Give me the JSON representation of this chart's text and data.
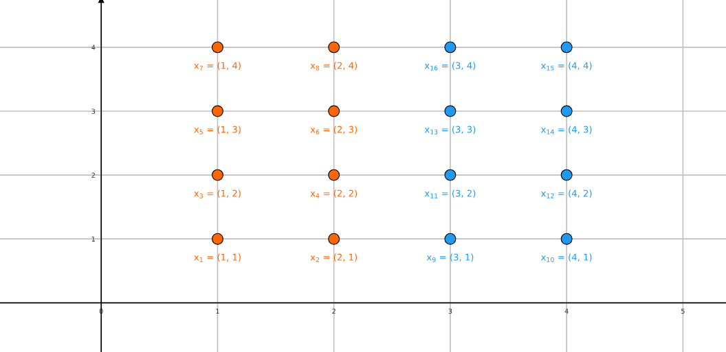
{
  "chart_data": {
    "type": "scatter",
    "xlim": [
      -0.87,
      5.37
    ],
    "ylim": [
      -0.77,
      4.74
    ],
    "xticks": [
      0,
      1,
      2,
      3,
      4,
      5
    ],
    "yticks": [
      1,
      2,
      3,
      4
    ],
    "grid": true,
    "marker": "circle",
    "series": [
      {
        "color": "#ff6600",
        "x": [
          1,
          2,
          1,
          2,
          1,
          2,
          1,
          2
        ],
        "values": [
          1,
          1,
          2,
          2,
          3,
          3,
          4,
          4
        ],
        "value_labels": [
          "x$_{1}$ = (1, 1)",
          "x$_{2}$ = (2, 1)",
          "x$_{3}$ = (1, 2)",
          "x$_{4}$ = (2, 2)",
          "x$_{5}$ = (1, 3)",
          "x$_{6}$ = (2, 3)",
          "x$_{7}$ = (1, 4)",
          "x$_{8}$ = (2, 4)"
        ]
      },
      {
        "color": "#1e9bf0",
        "x": [
          3,
          4,
          3,
          4,
          3,
          4,
          3,
          4
        ],
        "values": [
          1,
          1,
          2,
          2,
          3,
          3,
          4,
          4
        ],
        "value_labels": [
          "x$_{9}$ = (3, 1)",
          "x$_{10}$ = (4, 1)",
          "x$_{11}$ = (3, 2)",
          "x$_{12}$ = (4, 2)",
          "x$_{13}$ = (3, 3)",
          "x$_{14}$ = (4, 3)",
          "x$_{16}$ = (3, 4)",
          "x$_{15}$ = (4, 4)"
        ]
      }
    ]
  }
}
